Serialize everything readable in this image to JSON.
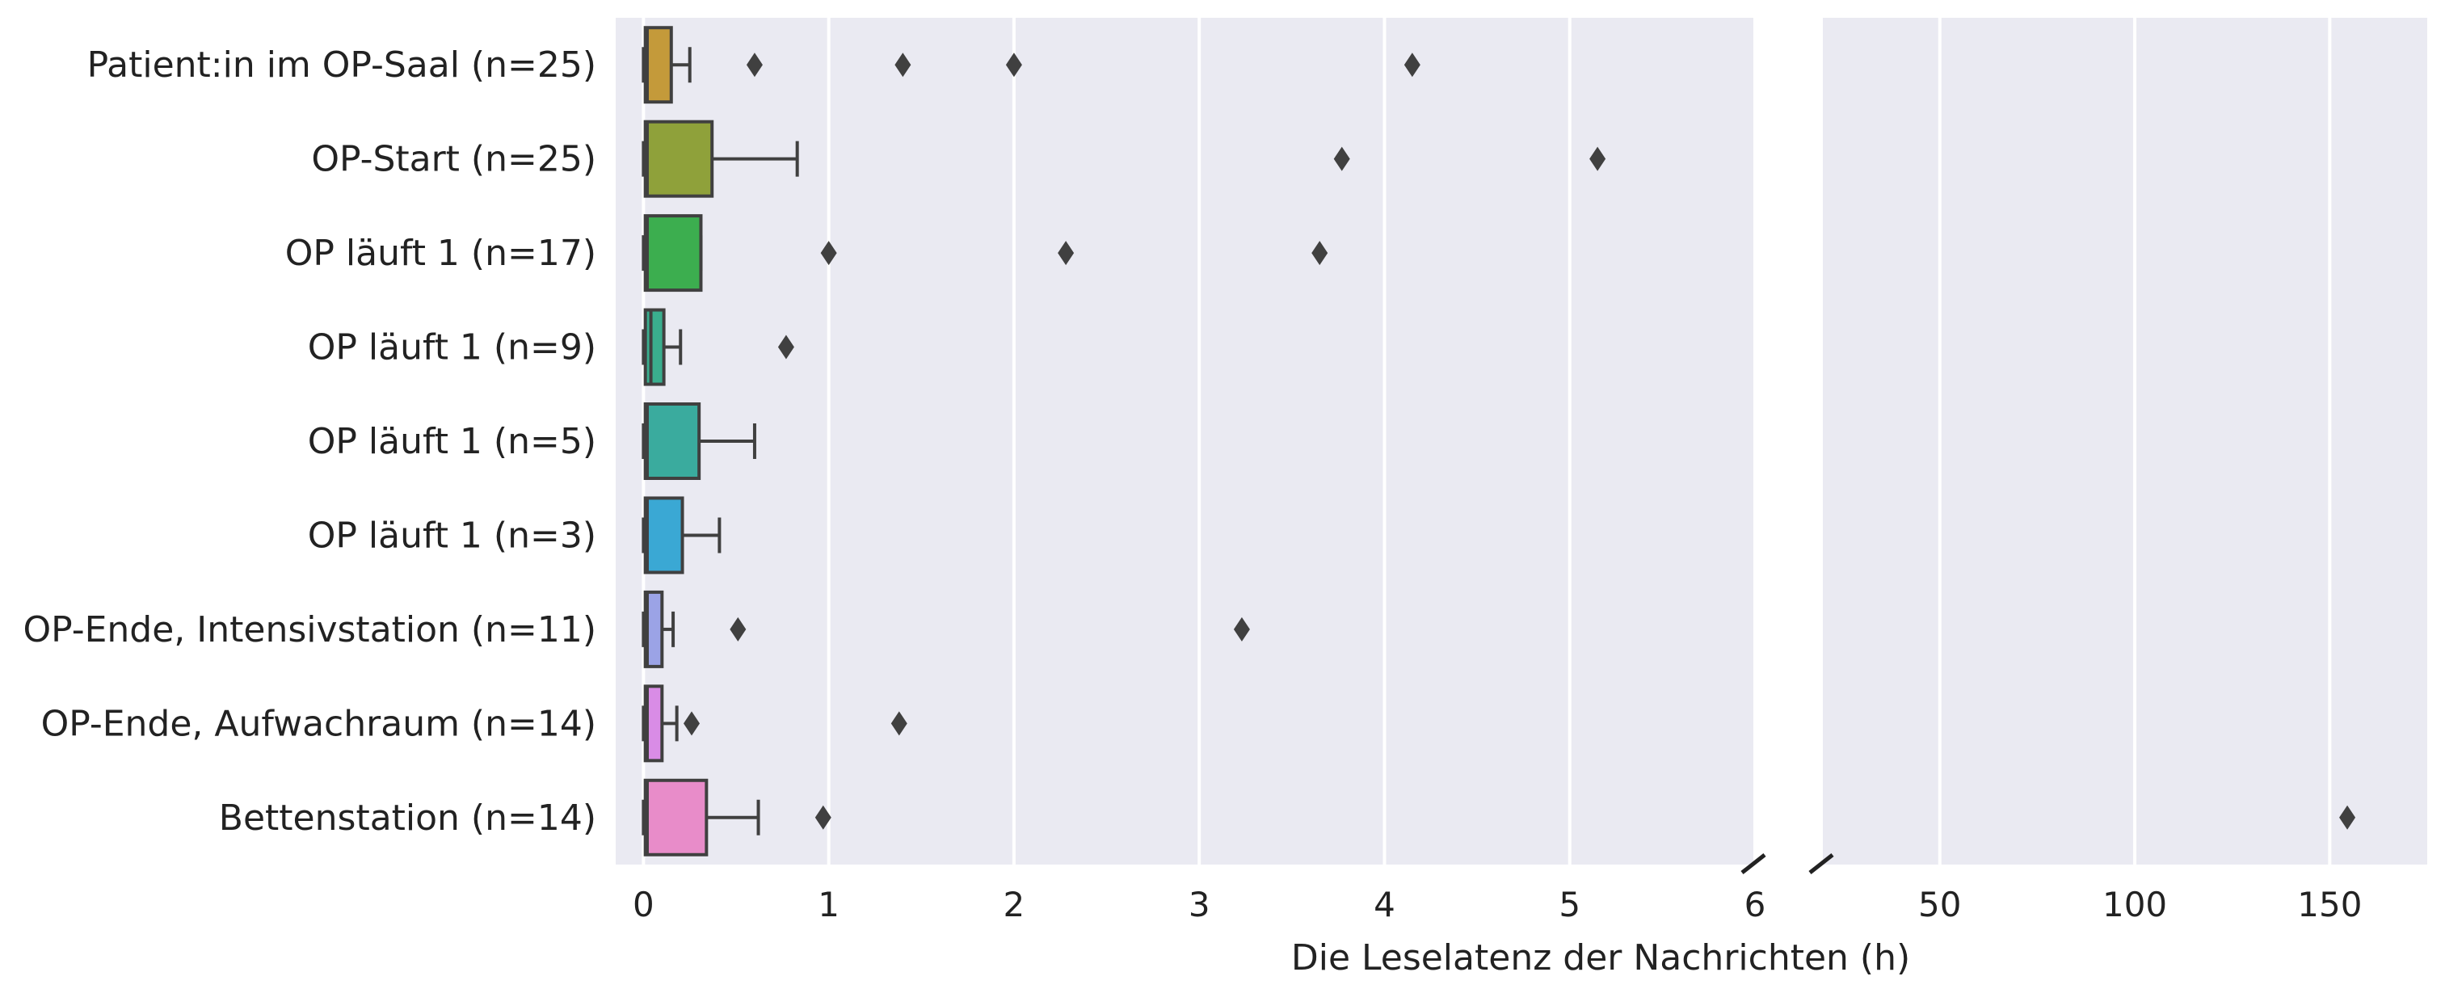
{
  "chart_data": {
    "type": "box",
    "orientation": "horizontal",
    "xlabel": "Die Leselatenz der Nachrichten (h)",
    "ylabel": "",
    "grid": true,
    "broken_axis": true,
    "panels": [
      {
        "xlim": [
          -0.15,
          6
        ],
        "ticks": [
          0,
          1,
          2,
          3,
          4,
          5,
          6
        ]
      },
      {
        "xlim": [
          20,
          175
        ],
        "ticks": [
          50,
          100,
          150
        ]
      }
    ],
    "categories": [
      "Patient:in im OP-Saal (n=25)",
      "OP-Start (n=25)",
      "OP läuft 1 (n=17)",
      "OP läuft 1 (n=9)",
      "OP läuft 1 (n=5)",
      "OP läuft 1 (n=3)",
      "OP-Ende, Intensivstation (n=11)",
      "OP-Ende, Aufwachraum (n=14)",
      "Bettenstation (n=14)"
    ],
    "boxes": [
      {
        "whisker_low": 0,
        "q1": 0.01,
        "median": 0.02,
        "q3": 0.15,
        "whisker_high": 0.25,
        "outliers": [
          0.6,
          1.4,
          2.0,
          4.15
        ],
        "color": "#c49a3a"
      },
      {
        "whisker_low": 0,
        "q1": 0.01,
        "median": 0.02,
        "q3": 0.37,
        "whisker_high": 0.83,
        "outliers": [
          3.77,
          5.15
        ],
        "color": "#8fa13a"
      },
      {
        "whisker_low": 0,
        "q1": 0.01,
        "median": 0.02,
        "q3": 0.31,
        "whisker_high": 0.31,
        "outliers": [
          1.0,
          2.28,
          3.65
        ],
        "color": "#3cae4f"
      },
      {
        "whisker_low": 0,
        "q1": 0.01,
        "median": 0.04,
        "q3": 0.11,
        "whisker_high": 0.2,
        "outliers": [
          0.77
        ],
        "color": "#3aae8e"
      },
      {
        "whisker_low": 0,
        "q1": 0.01,
        "median": 0.02,
        "q3": 0.3,
        "whisker_high": 0.6,
        "outliers": [],
        "color": "#3aab9e"
      },
      {
        "whisker_low": 0,
        "q1": 0.01,
        "median": 0.02,
        "q3": 0.21,
        "whisker_high": 0.41,
        "outliers": [],
        "color": "#3aa8d4"
      },
      {
        "whisker_low": 0,
        "q1": 0.01,
        "median": 0.02,
        "q3": 0.1,
        "whisker_high": 0.16,
        "outliers": [
          0.51,
          3.23
        ],
        "color": "#9ba3e6"
      },
      {
        "whisker_low": 0,
        "q1": 0.01,
        "median": 0.02,
        "q3": 0.1,
        "whisker_high": 0.18,
        "outliers": [
          0.26,
          1.38
        ],
        "color": "#d98ce6"
      },
      {
        "whisker_low": 0,
        "q1": 0.01,
        "median": 0.02,
        "q3": 0.34,
        "whisker_high": 0.62,
        "outliers": [
          0.97,
          154.5
        ],
        "color": "#e88cc9"
      }
    ]
  }
}
